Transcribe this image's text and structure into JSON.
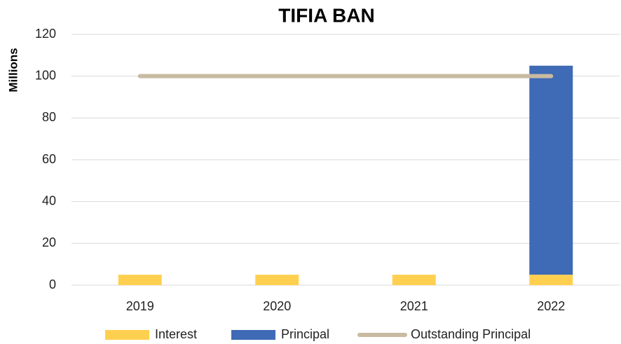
{
  "chart_data": {
    "type": "bar",
    "stacked": true,
    "title": "TIFIA BAN",
    "y_label": "Millions",
    "categories": [
      "2019",
      "2020",
      "2021",
      "2022"
    ],
    "series": [
      {
        "name": "Interest",
        "type": "bar",
        "color": "#ffd050",
        "values": [
          5,
          5,
          5,
          5
        ]
      },
      {
        "name": "Principal",
        "type": "bar",
        "color": "#3f6ab5",
        "values": [
          0,
          0,
          0,
          100
        ]
      },
      {
        "name": "Outstanding Principal",
        "type": "line",
        "color": "#c8bba2",
        "values": [
          100,
          100,
          100,
          100
        ]
      }
    ],
    "ylim": [
      0,
      120
    ],
    "yticks": [
      0,
      20,
      40,
      60,
      80,
      100,
      120
    ],
    "grid": true,
    "legend": "bottom"
  }
}
